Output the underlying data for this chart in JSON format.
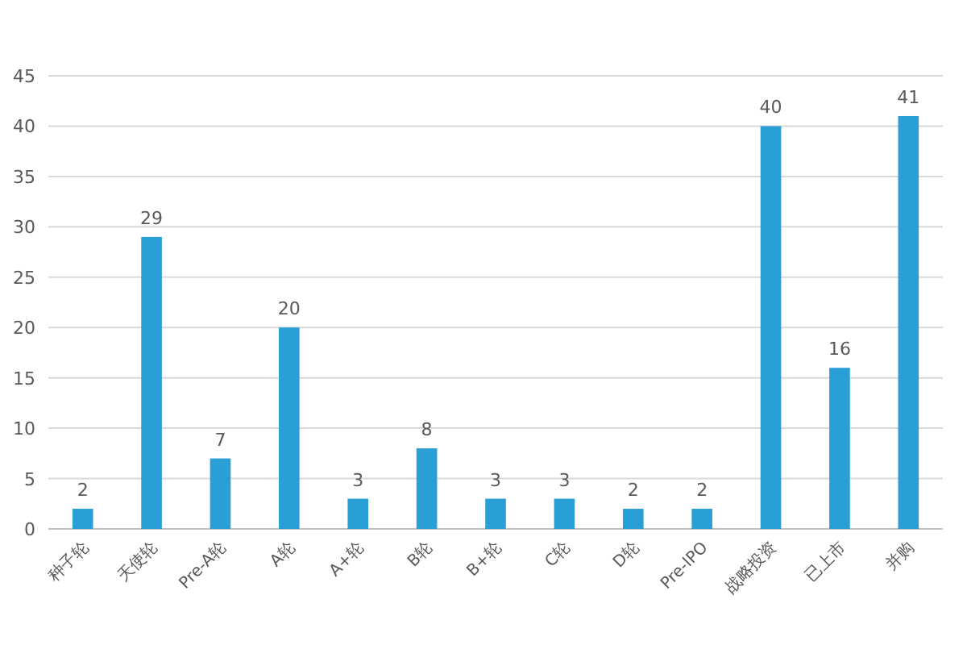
{
  "chart_data": {
    "type": "bar",
    "categories": [
      "种子轮",
      "天使轮",
      "Pre-A轮",
      "A轮",
      "A+轮",
      "B轮",
      "B+轮",
      "C轮",
      "D轮",
      "Pre-IPO",
      "战略投资",
      "已上市",
      "并购"
    ],
    "values": [
      2,
      29,
      7,
      20,
      3,
      8,
      3,
      3,
      2,
      2,
      40,
      16,
      41
    ],
    "color": "#2a9fd6",
    "ylim": [
      0,
      45
    ],
    "yticks": [
      0,
      5,
      10,
      15,
      20,
      25,
      30,
      35,
      40,
      45
    ],
    "grid": "y",
    "data_labels": true
  }
}
